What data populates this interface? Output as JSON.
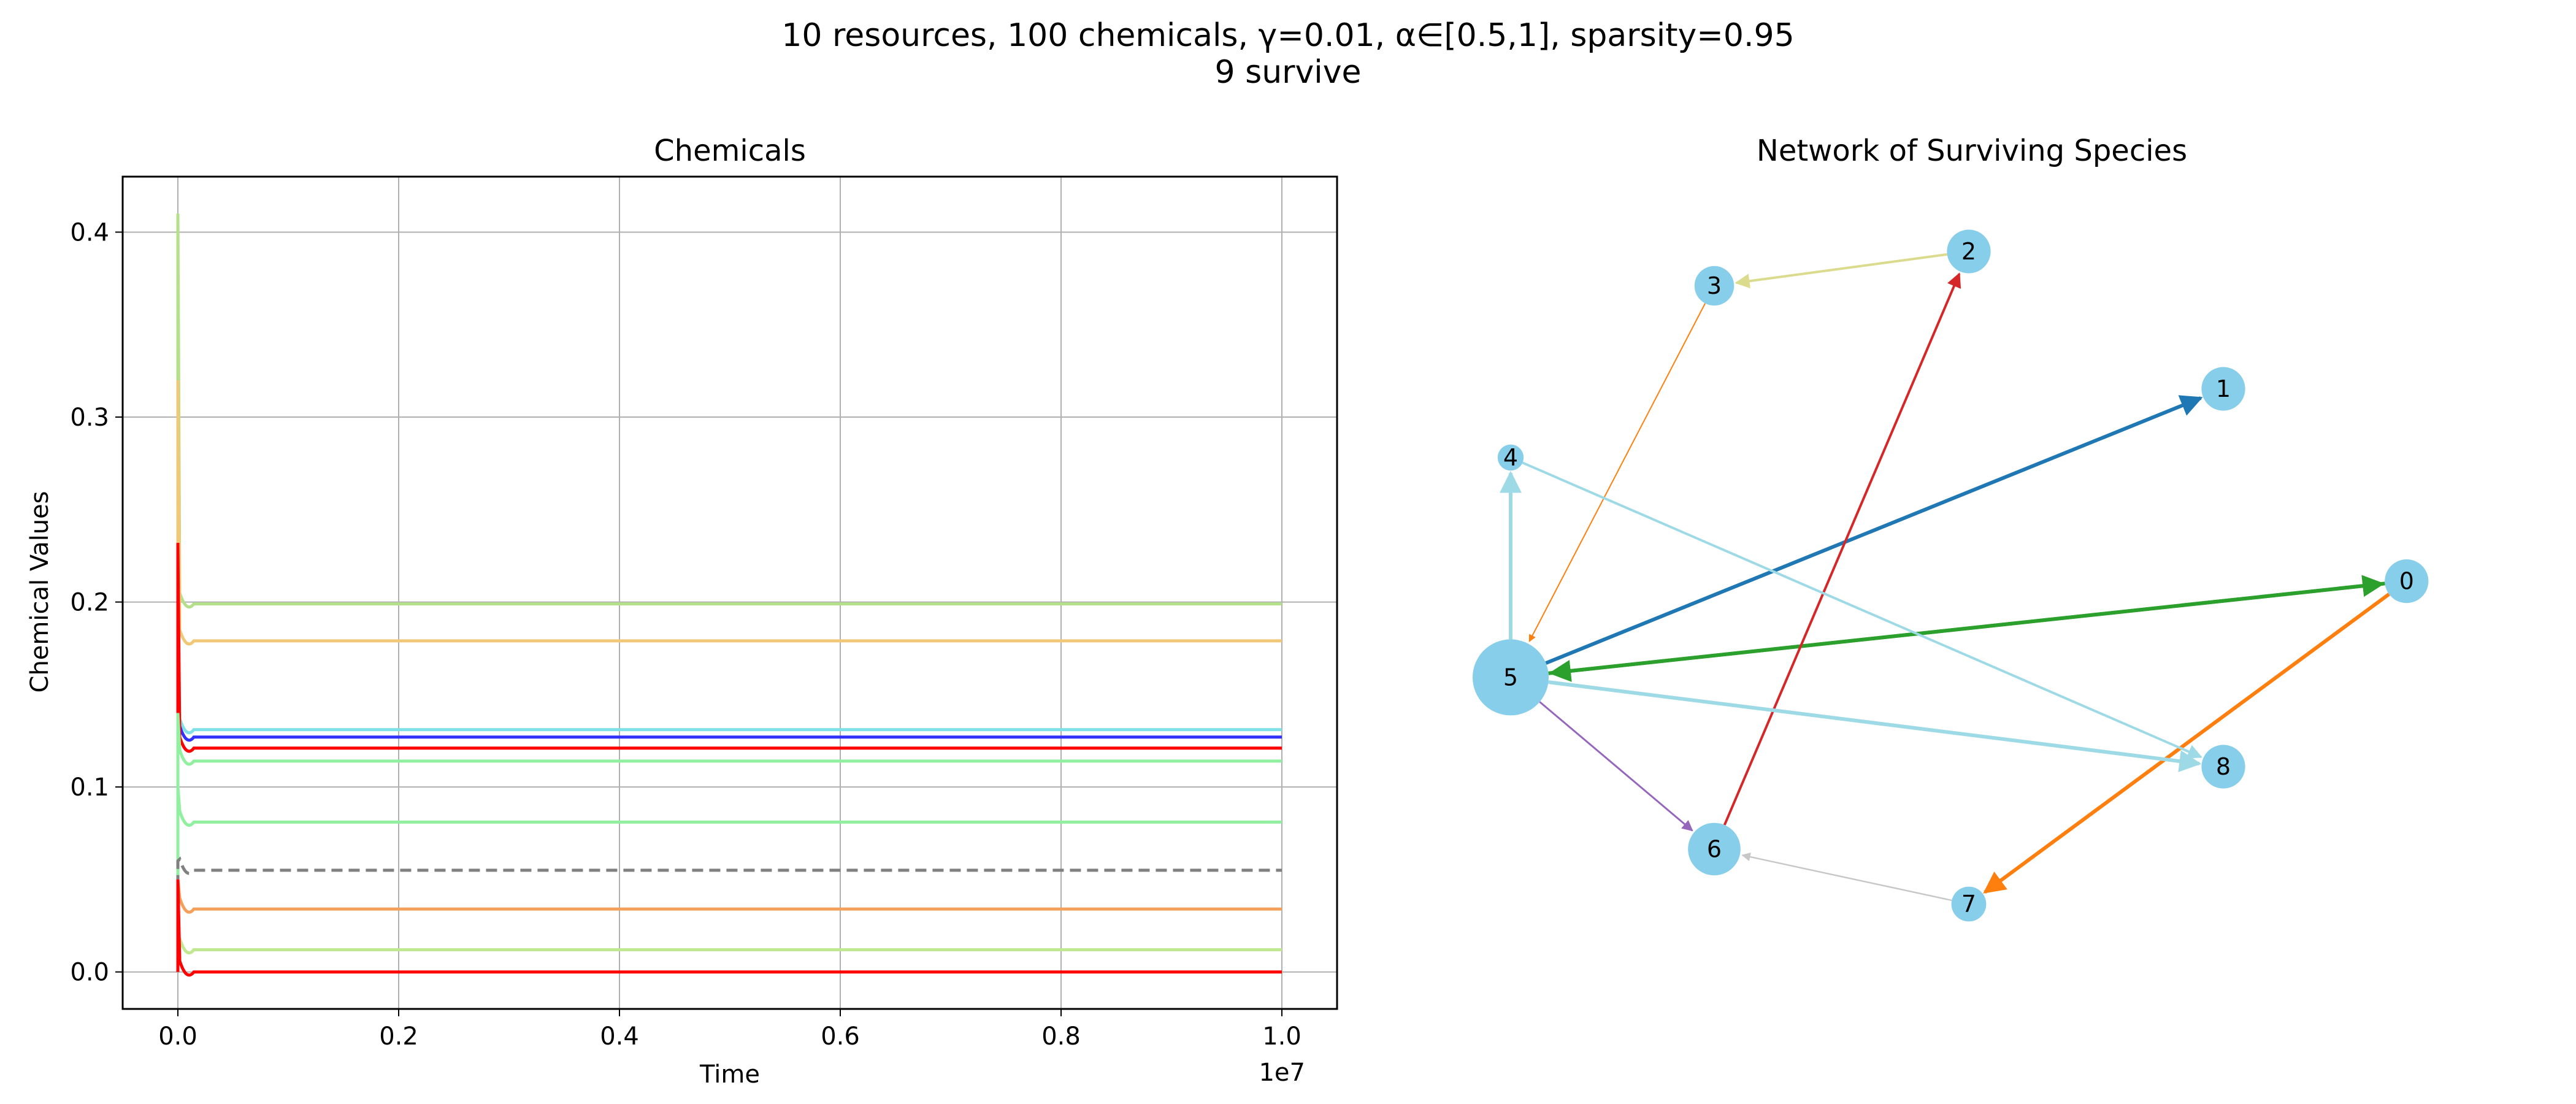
{
  "suptitle": {
    "line1": "10 resources, 100 chemicals, γ=0.01, α∈[0.5,1], sparsity=0.95",
    "line2": "9 survive"
  },
  "chart_data": [
    {
      "type": "line",
      "title": "Chemicals",
      "xlabel": "Time",
      "ylabel": "Chemical Values",
      "x_offset_text": "1e7",
      "xlim": [
        -0.05,
        1.05
      ],
      "ylim": [
        -0.02,
        0.43
      ],
      "x_ticks": [
        0.0,
        0.2,
        0.4,
        0.6,
        0.8,
        1.0
      ],
      "x_tick_labels": [
        "0.0",
        "0.2",
        "0.4",
        "0.6",
        "0.8",
        "1.0"
      ],
      "y_ticks": [
        0.0,
        0.1,
        0.2,
        0.3,
        0.4
      ],
      "y_tick_labels": [
        "0.0",
        "0.1",
        "0.2",
        "0.3",
        "0.4"
      ],
      "grid": true,
      "x_end": 1.0,
      "series": [
        {
          "color": "#b5e08a",
          "steady": 0.199,
          "peak": 0.41,
          "dashed": false
        },
        {
          "color": "#f0c878",
          "steady": 0.179,
          "peak": 0.32,
          "dashed": false
        },
        {
          "color": "#80e0e8",
          "steady": 0.131,
          "peak": 0.2,
          "dashed": false
        },
        {
          "color": "#3030ff",
          "steady": 0.127,
          "peak": 0.15,
          "dashed": false
        },
        {
          "color": "#ff0000",
          "steady": 0.121,
          "peak": 0.232,
          "dashed": false
        },
        {
          "color": "#90f0a0",
          "steady": 0.114,
          "peak": 0.14,
          "dashed": false
        },
        {
          "color": "#90f0a0",
          "steady": 0.081,
          "peak": 0.1,
          "dashed": false
        },
        {
          "color": "#808080",
          "steady": 0.055,
          "peak": 0.06,
          "dashed": true
        },
        {
          "color": "#f4a05a",
          "steady": 0.034,
          "peak": 0.05,
          "dashed": false
        },
        {
          "color": "#c0e890",
          "steady": 0.012,
          "peak": 0.02,
          "dashed": false
        },
        {
          "color": "#ff0000",
          "steady": 0.0,
          "peak": 0.05,
          "dashed": false
        }
      ]
    },
    {
      "type": "network",
      "title": "Network of Surviving Species",
      "node_color": "#87ceeb",
      "nodes": [
        {
          "id": "0",
          "x": 0.93,
          "y": 0.52,
          "size": 0.45
        },
        {
          "id": "1",
          "x": 0.75,
          "y": 0.8,
          "size": 0.45
        },
        {
          "id": "2",
          "x": 0.5,
          "y": 1.0,
          "size": 0.45
        },
        {
          "id": "3",
          "x": 0.25,
          "y": 0.95,
          "size": 0.38
        },
        {
          "id": "4",
          "x": 0.05,
          "y": 0.7,
          "size": 0.15
        },
        {
          "id": "5",
          "x": 0.05,
          "y": 0.38,
          "size": 1.0
        },
        {
          "id": "6",
          "x": 0.25,
          "y": 0.13,
          "size": 0.6
        },
        {
          "id": "7",
          "x": 0.5,
          "y": 0.05,
          "size": 0.3
        },
        {
          "id": "8",
          "x": 0.75,
          "y": 0.25,
          "size": 0.45
        }
      ],
      "edges": [
        {
          "from": "5",
          "to": "1",
          "color": "#1f77b4",
          "width": 3
        },
        {
          "from": "0",
          "to": "5",
          "color": "#2ca02c",
          "width": 3
        },
        {
          "from": "5",
          "to": "0",
          "color": "#2ca02c",
          "width": 3
        },
        {
          "from": "0",
          "to": "7",
          "color": "#ff7f0e",
          "width": 3
        },
        {
          "from": "2",
          "to": "3",
          "color": "#dbdb8d",
          "width": 2
        },
        {
          "from": "3",
          "to": "5",
          "color": "#ff7f0e",
          "width": 1
        },
        {
          "from": "6",
          "to": "2",
          "color": "#d62728",
          "width": 2
        },
        {
          "from": "5",
          "to": "4",
          "color": "#9edae5",
          "width": 3
        },
        {
          "from": "4",
          "to": "8",
          "color": "#9edae5",
          "width": 2
        },
        {
          "from": "5",
          "to": "8",
          "color": "#9edae5",
          "width": 3
        },
        {
          "from": "5",
          "to": "6",
          "color": "#9467bd",
          "width": 1.5
        },
        {
          "from": "7",
          "to": "6",
          "color": "#c7c7c7",
          "width": 1.2
        }
      ]
    }
  ]
}
